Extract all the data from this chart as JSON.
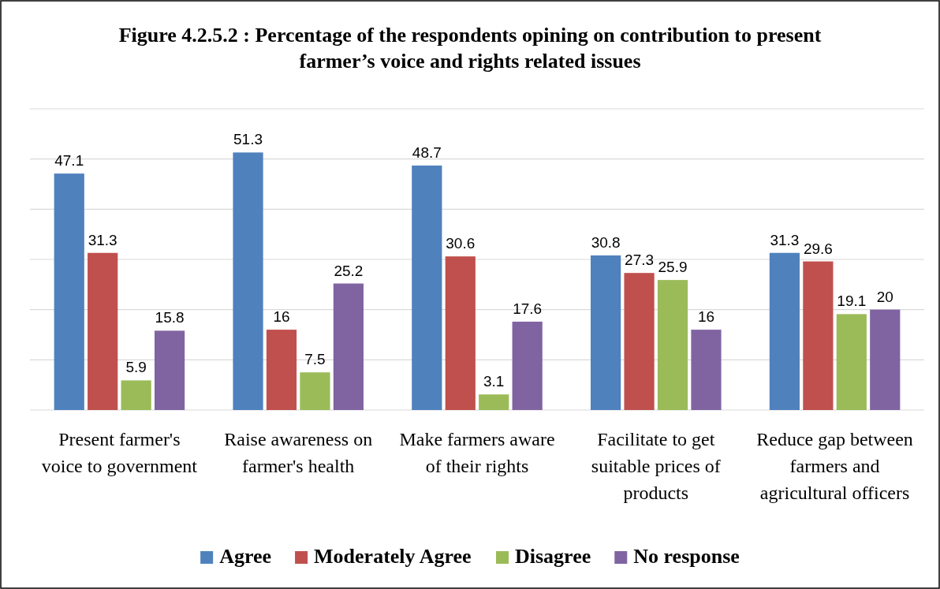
{
  "chart_data": {
    "type": "bar",
    "title": "Figure 4.2.5.2 : Percentage of the respondents opining on contribution to present farmer’s voice and rights related issues",
    "categories": [
      "Present farmer's voice to government",
      "Raise awareness on farmer's health",
      "Make farmers aware of their rights",
      "Facilitate to get suitable prices of products",
      "Reduce gap between farmers and agricultural officers"
    ],
    "series": [
      {
        "name": "Agree",
        "color": "#4f81bd",
        "values": [
          47.1,
          51.3,
          48.7,
          30.8,
          31.3
        ]
      },
      {
        "name": "Moderately Agree",
        "color": "#c0504d",
        "values": [
          31.3,
          16,
          30.6,
          27.3,
          29.6
        ]
      },
      {
        "name": "Disagree",
        "color": "#9bbb59",
        "values": [
          5.9,
          7.5,
          3.1,
          25.9,
          19.1
        ]
      },
      {
        "name": "No response",
        "color": "#8064a2",
        "values": [
          15.8,
          25.2,
          17.6,
          16,
          20
        ]
      }
    ],
    "ylim": [
      0,
      60
    ],
    "yticks": [
      {
        "value": 0,
        "label": null
      },
      {
        "value": 10,
        "label": null
      },
      {
        "value": 20,
        "label": null
      },
      {
        "value": 30,
        "label": null
      },
      {
        "value": 40,
        "label": null
      },
      {
        "value": 50,
        "label": null
      },
      {
        "value": 60,
        "label": null
      }
    ],
    "tick_labels": "x",
    "grid": "y",
    "legend": "bottom",
    "data_labels": true
  }
}
